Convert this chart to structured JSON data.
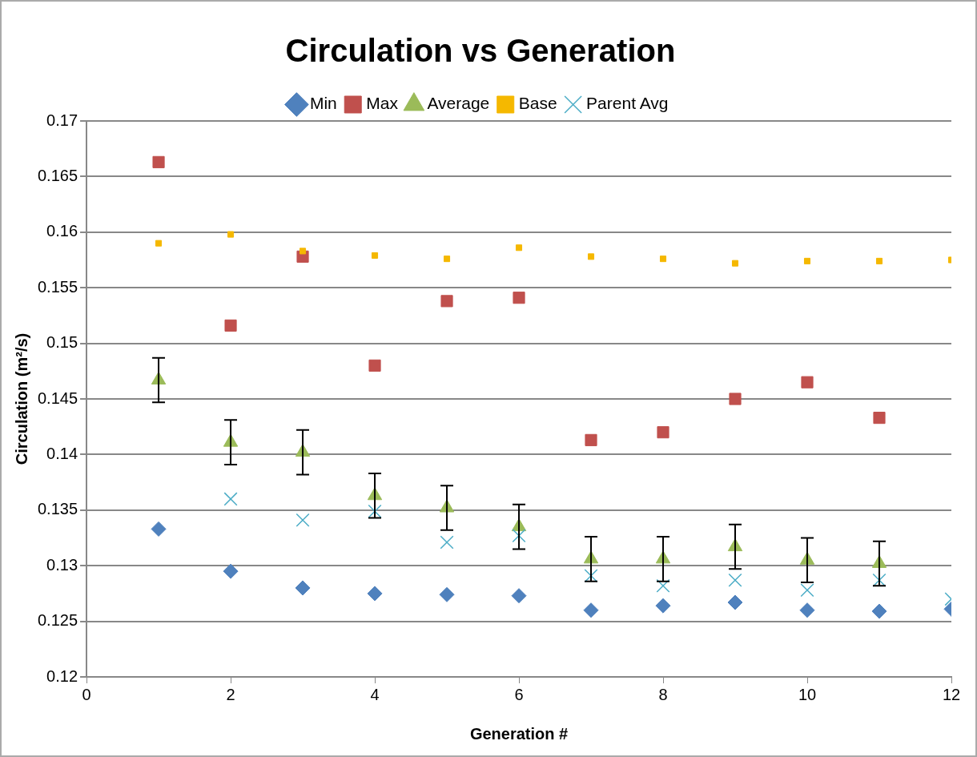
{
  "chart_data": {
    "type": "scatter",
    "title": "Circulation vs Generation",
    "xlabel": "Generation #",
    "ylabel": "Circulation (m²/s)",
    "x": [
      1,
      2,
      3,
      4,
      5,
      6,
      7,
      8,
      9,
      10,
      11,
      12
    ],
    "xlim": [
      0,
      12
    ],
    "xticks": [
      0,
      2,
      4,
      6,
      8,
      10,
      12
    ],
    "ylim": [
      0.12,
      0.17
    ],
    "yticks": [
      0.12,
      0.125,
      0.13,
      0.135,
      0.14,
      0.145,
      0.15,
      0.155,
      0.16,
      0.165,
      0.17
    ],
    "grid": "y",
    "legend": "top",
    "series": [
      {
        "name": "Min",
        "color": "#4f81bd",
        "marker": "diamond",
        "values": [
          0.1333,
          0.1295,
          0.128,
          0.1275,
          0.1274,
          0.1273,
          0.126,
          0.1264,
          0.1267,
          0.126,
          0.1259,
          0.1261
        ]
      },
      {
        "name": "Max",
        "color": "#c0504d",
        "marker": "square",
        "values": [
          0.1663,
          0.1516,
          0.1578,
          0.148,
          0.1538,
          0.1541,
          0.1413,
          0.142,
          0.145,
          0.1465,
          0.1433,
          null
        ]
      },
      {
        "name": "Average",
        "color": "#9bbb59",
        "marker": "triangle",
        "values": [
          0.1467,
          0.1411,
          0.1402,
          0.1363,
          0.1352,
          0.1335,
          0.1306,
          0.1306,
          0.1317,
          0.1305,
          0.1302,
          null
        ],
        "errors": [
          0.002,
          0.002,
          0.002,
          0.002,
          0.002,
          0.002,
          0.002,
          0.002,
          0.002,
          0.002,
          0.002,
          null
        ]
      },
      {
        "name": "Base",
        "color": "#f5b800",
        "marker": "square",
        "values": [
          0.159,
          0.1598,
          0.1583,
          0.1579,
          0.1576,
          0.1586,
          0.1578,
          0.1576,
          0.1572,
          0.1574,
          0.1574,
          0.1575
        ]
      },
      {
        "name": "Parent Avg",
        "color": "#4bacc6",
        "marker": "cross",
        "values": [
          null,
          0.136,
          0.1341,
          0.1349,
          0.1321,
          0.1327,
          0.1291,
          0.1282,
          0.1287,
          0.1278,
          0.1287,
          0.127
        ]
      }
    ]
  }
}
